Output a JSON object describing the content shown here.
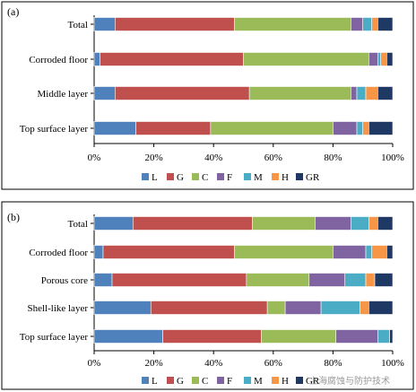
{
  "colors": {
    "L": "#4f81bd",
    "G": "#c0504d",
    "C": "#9bbb59",
    "F": "#8064a2",
    "M": "#4bacc6",
    "H": "#f79646",
    "GR": "#1f3864"
  },
  "watermark": "上海腐蚀与防护技术",
  "chart_data": [
    {
      "type": "bar",
      "orientation": "horizontal",
      "stacked": true,
      "panel_label": "(a)",
      "categories": [
        "Total",
        "Corroded floor",
        "Middle layer",
        "Top surface layer"
      ],
      "series": [
        {
          "name": "L",
          "values": [
            7,
            2,
            7,
            14
          ]
        },
        {
          "name": "G",
          "values": [
            40,
            48,
            45,
            25
          ]
        },
        {
          "name": "C",
          "values": [
            39,
            42,
            34,
            41
          ]
        },
        {
          "name": "F",
          "values": [
            4,
            3,
            2,
            8
          ]
        },
        {
          "name": "M",
          "values": [
            3,
            1,
            3,
            2
          ]
        },
        {
          "name": "H",
          "values": [
            2,
            2,
            4,
            2
          ]
        },
        {
          "name": "GR",
          "values": [
            5,
            2,
            5,
            8
          ]
        }
      ],
      "xlim": [
        0,
        100
      ],
      "x_ticks": [
        "0%",
        "20%",
        "40%",
        "60%",
        "80%",
        "100%"
      ],
      "legend_position": "bottom"
    },
    {
      "type": "bar",
      "orientation": "horizontal",
      "stacked": true,
      "panel_label": "(b)",
      "categories": [
        "Total",
        "Corroded floor",
        "Porous core",
        "Shell-like layer",
        "Top surface layer"
      ],
      "series": [
        {
          "name": "L",
          "values": [
            13,
            3,
            6,
            19,
            23
          ]
        },
        {
          "name": "G",
          "values": [
            40,
            44,
            45,
            39,
            33
          ]
        },
        {
          "name": "C",
          "values": [
            21,
            33,
            21,
            6,
            25
          ]
        },
        {
          "name": "F",
          "values": [
            12,
            11,
            12,
            12,
            14
          ]
        },
        {
          "name": "M",
          "values": [
            6,
            2,
            7,
            13,
            4
          ]
        },
        {
          "name": "H",
          "values": [
            3,
            5,
            3,
            3,
            0
          ]
        },
        {
          "name": "GR",
          "values": [
            5,
            2,
            6,
            8,
            1
          ]
        }
      ],
      "xlim": [
        0,
        100
      ],
      "x_ticks": [
        "0%",
        "20%",
        "40%",
        "60%",
        "80%",
        "100%"
      ],
      "legend_position": "bottom"
    }
  ]
}
